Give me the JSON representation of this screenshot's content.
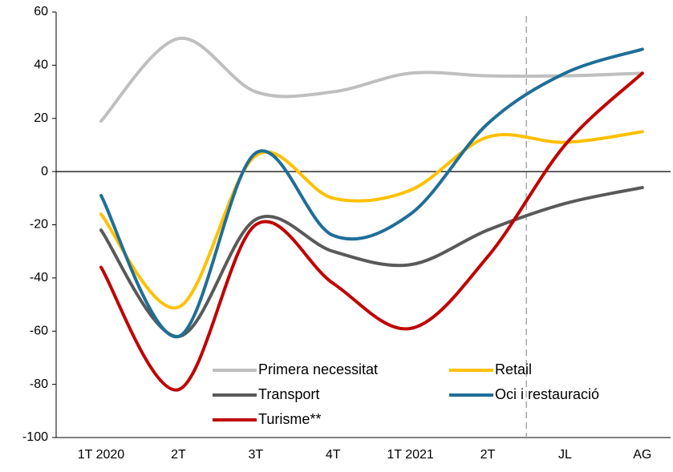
{
  "chart_data": {
    "type": "line",
    "categories": [
      "1T 2020",
      "2T",
      "3T",
      "4T",
      "1T 2021",
      "2T",
      "JL",
      "AG"
    ],
    "series": [
      {
        "name": "Primera necessitat",
        "color": "#bfbfbf",
        "values": [
          19,
          50,
          30,
          30,
          37,
          36,
          36,
          37
        ]
      },
      {
        "name": "Retail",
        "color": "#ffc000",
        "values": [
          -16,
          -51,
          6,
          -10,
          -7,
          13,
          11,
          15
        ]
      },
      {
        "name": "Transport",
        "color": "#595959",
        "values": [
          -22,
          -62,
          -18,
          -30,
          -35,
          -22,
          -12,
          -6
        ]
      },
      {
        "name": "Oci i restauració",
        "color": "#1f6e98",
        "values": [
          -9,
          -62,
          7,
          -24,
          -16,
          18,
          37,
          46
        ]
      },
      {
        "name": "Turisme**",
        "color": "#c00000",
        "values": [
          -36,
          -82,
          -20,
          -42,
          -59,
          -32,
          10,
          37
        ]
      }
    ],
    "ylim": [
      -100,
      60
    ],
    "yticks": [
      -100,
      -80,
      -60,
      -40,
      -20,
      0,
      20,
      40,
      60
    ],
    "legend": "bottom"
  }
}
